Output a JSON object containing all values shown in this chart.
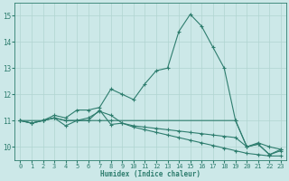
{
  "xlabel": "Humidex (Indice chaleur)",
  "bg_color": "#cce8e8",
  "grid_color": "#b0d4d0",
  "line_color": "#2e7d6e",
  "xlim": [
    -0.5,
    23.5
  ],
  "ylim": [
    9.5,
    15.5
  ],
  "xticks": [
    0,
    1,
    2,
    3,
    4,
    5,
    6,
    7,
    8,
    9,
    10,
    11,
    12,
    13,
    14,
    15,
    16,
    17,
    18,
    19,
    20,
    21,
    22,
    23
  ],
  "yticks": [
    10,
    11,
    12,
    13,
    14,
    15
  ],
  "line1_x": [
    0,
    1,
    2,
    3,
    4,
    5,
    6,
    7,
    8,
    9,
    10,
    11,
    12,
    13,
    14,
    15,
    16,
    17,
    18,
    19,
    20,
    21,
    22,
    23
  ],
  "line1_y": [
    11.0,
    10.9,
    11.0,
    11.2,
    11.1,
    11.4,
    11.4,
    11.5,
    12.2,
    12.0,
    11.8,
    12.4,
    12.9,
    13.0,
    14.4,
    15.05,
    14.6,
    13.8,
    13.0,
    11.0,
    10.0,
    10.1,
    9.7,
    9.9
  ],
  "line2_x": [
    0,
    1,
    2,
    3,
    4,
    5,
    6,
    7,
    8,
    9,
    10,
    11,
    12,
    13,
    14,
    15,
    16,
    17,
    18,
    19,
    20,
    21,
    22,
    23
  ],
  "line2_y": [
    11.0,
    10.9,
    11.0,
    11.1,
    10.8,
    11.0,
    11.0,
    11.4,
    10.85,
    10.9,
    10.8,
    10.75,
    10.7,
    10.65,
    10.6,
    10.55,
    10.5,
    10.45,
    10.4,
    10.35,
    10.0,
    10.1,
    9.7,
    9.85
  ],
  "line3_x": [
    0,
    1,
    2,
    3,
    4,
    5,
    6,
    7,
    8,
    9,
    10,
    11,
    12,
    13,
    14,
    15,
    16,
    17,
    18,
    19,
    20,
    21,
    22,
    23
  ],
  "line3_y": [
    11.0,
    10.9,
    11.0,
    11.1,
    11.0,
    11.0,
    11.1,
    11.35,
    11.2,
    10.9,
    10.75,
    10.65,
    10.55,
    10.45,
    10.35,
    10.25,
    10.15,
    10.05,
    9.95,
    9.85,
    9.75,
    9.7,
    9.65,
    9.65
  ],
  "line4_x": [
    0,
    2,
    3,
    4,
    5,
    6,
    7,
    8,
    19,
    20,
    21,
    22,
    23
  ],
  "line4_y": [
    11.0,
    11.0,
    11.1,
    11.0,
    11.0,
    11.0,
    11.0,
    11.0,
    11.0,
    10.0,
    10.15,
    10.0,
    9.9
  ]
}
